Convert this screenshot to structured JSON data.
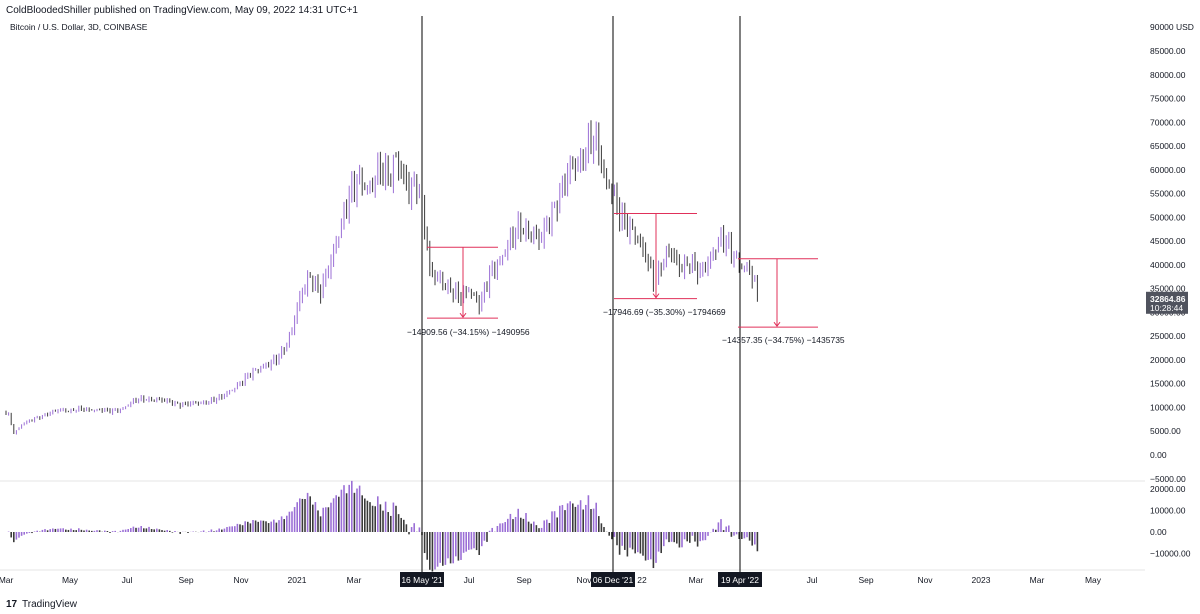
{
  "header": {
    "publisher": "ColdBloodedShiller published on TradingView.com, May 09, 2022 14:31 UTC+1",
    "symbol": "Bitcoin / U.S. Dollar, 3D, COINBASE"
  },
  "footer": {
    "brand": "TradingView"
  },
  "colors": {
    "up": "#9b6fd6",
    "down": "#3a3a3a",
    "measure": "#e0305a",
    "axis_text": "#131722",
    "grid_line": "#e6e6e6",
    "marker_bg": "#131722"
  },
  "chart_data": {
    "type": "candlestick",
    "title": "Bitcoin / U.S. Dollar, 3D, COINBASE",
    "currency": "USD",
    "x_ticks": [
      "Mar",
      "May",
      "Jul",
      "Sep",
      "Nov",
      "2021",
      "Mar",
      "16 May '21",
      "Jul",
      "Sep",
      "Nov",
      "06 Dec '21",
      "22",
      "Mar",
      "19 Apr '22",
      "Jul",
      "Sep",
      "Nov",
      "2023",
      "Mar",
      "May"
    ],
    "y_ticks": [
      "85000.00",
      "80000.00",
      "75000.00",
      "70000.00",
      "65000.00",
      "60000.00",
      "55000.00",
      "50000.00",
      "45000.00",
      "40000.00",
      "35000.00",
      "30000.00",
      "25000.00",
      "20000.00",
      "15000.00",
      "10000.00",
      "5000.00",
      "0.00",
      "−5000.00"
    ],
    "y_top_label": "90000 USD",
    "ylim": [
      -5000,
      90000
    ],
    "price_path": [
      [
        0,
        9000
      ],
      [
        8,
        8800
      ],
      [
        14,
        4500
      ],
      [
        22,
        6500
      ],
      [
        30,
        7200
      ],
      [
        45,
        8500
      ],
      [
        60,
        9500
      ],
      [
        70,
        9300
      ],
      [
        80,
        9700
      ],
      [
        90,
        9400
      ],
      [
        100,
        9600
      ],
      [
        110,
        9200
      ],
      [
        120,
        9500
      ],
      [
        135,
        11500
      ],
      [
        145,
        11800
      ],
      [
        160,
        11600
      ],
      [
        170,
        11200
      ],
      [
        180,
        10600
      ],
      [
        190,
        10800
      ],
      [
        200,
        11000
      ],
      [
        210,
        11300
      ],
      [
        220,
        12000
      ],
      [
        230,
        13500
      ],
      [
        240,
        15000
      ],
      [
        250,
        17000
      ],
      [
        260,
        18500
      ],
      [
        270,
        19000
      ],
      [
        280,
        21000
      ],
      [
        290,
        25000
      ],
      [
        300,
        33000
      ],
      [
        310,
        38000
      ],
      [
        320,
        34000
      ],
      [
        330,
        40000
      ],
      [
        340,
        48000
      ],
      [
        350,
        55000
      ],
      [
        360,
        58000
      ],
      [
        370,
        56000
      ],
      [
        380,
        60000
      ],
      [
        390,
        58500
      ],
      [
        395,
        63000
      ],
      [
        400,
        60000
      ],
      [
        410,
        55000
      ],
      [
        418,
        58000
      ],
      [
        425,
        48000
      ],
      [
        430,
        38000
      ],
      [
        440,
        37000
      ],
      [
        450,
        35000
      ],
      [
        460,
        33000
      ],
      [
        470,
        35000
      ],
      [
        480,
        31500
      ],
      [
        490,
        38000
      ],
      [
        500,
        41000
      ],
      [
        510,
        45000
      ],
      [
        520,
        48000
      ],
      [
        530,
        47000
      ],
      [
        540,
        45000
      ],
      [
        550,
        50000
      ],
      [
        560,
        55000
      ],
      [
        570,
        60000
      ],
      [
        580,
        62000
      ],
      [
        590,
        66000
      ],
      [
        598,
        65000
      ],
      [
        605,
        58000
      ],
      [
        612,
        56000
      ],
      [
        620,
        50000
      ],
      [
        628,
        48000
      ],
      [
        635,
        47000
      ],
      [
        645,
        42000
      ],
      [
        655,
        36000
      ],
      [
        662,
        41000
      ],
      [
        670,
        43000
      ],
      [
        680,
        39000
      ],
      [
        690,
        41000
      ],
      [
        700,
        38000
      ],
      [
        710,
        41000
      ],
      [
        720,
        46000
      ],
      [
        728,
        44000
      ],
      [
        735,
        41000
      ],
      [
        742,
        40000
      ],
      [
        750,
        39000
      ],
      [
        755,
        35000
      ],
      [
        760,
        32800
      ]
    ],
    "highlighted_dates": [
      "16 May '21",
      "06 Dec '21",
      "19 Apr '22"
    ],
    "measurements": [
      {
        "label": "−14909.56 (−34.15%) −1490956",
        "from_price": 43700,
        "to_price": 28800
      },
      {
        "label": "−17946.69 (−35.30%) −1794669",
        "from_price": 50800,
        "to_price": 32900
      },
      {
        "label": "−14357.35 (−34.75%) −1435735",
        "from_price": 41300,
        "to_price": 26900
      }
    ],
    "last_price": {
      "value": "32864.86",
      "countdown": "10:28:44"
    },
    "oscillator": {
      "y_ticks": [
        "20000.00",
        "10000.00",
        "0.00",
        "−10000.00"
      ],
      "ylim": [
        -12500,
        21000
      ]
    }
  }
}
